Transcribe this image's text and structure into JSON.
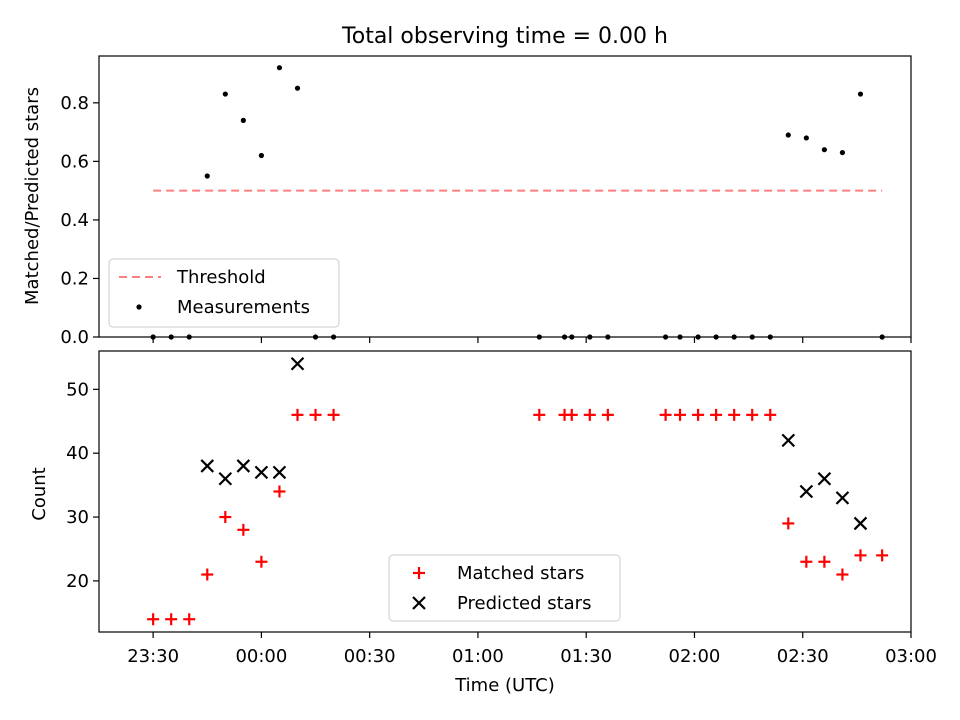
{
  "figure": {
    "title": "Total observing time = 0.00 h"
  },
  "chart_data": [
    {
      "type": "scatter",
      "title": "Total observing time = 0.00 h",
      "xlabel": "",
      "ylabel": "Matched/Predicted stars",
      "xlim": [
        "23:15",
        "03:00"
      ],
      "ylim": [
        0,
        0.96
      ],
      "yticks": [
        0.0,
        0.2,
        0.4,
        0.6,
        0.8
      ],
      "ytick_labels": [
        "0.0",
        "0.2",
        "0.4",
        "0.6",
        "0.8"
      ],
      "grid": false,
      "legend_position": "lower-left",
      "threshold": {
        "name": "Threshold",
        "value": 0.5,
        "x_start": "23:30",
        "x_end": "02:52",
        "color": "#ff7f7f",
        "style": "dashed"
      },
      "series": [
        {
          "name": "Measurements",
          "color": "#000000",
          "marker": "dot",
          "x": [
            "23:30",
            "23:35",
            "23:40",
            "23:45",
            "23:50",
            "23:55",
            "00:00",
            "00:05",
            "00:10",
            "00:15",
            "00:20",
            "01:17",
            "01:24",
            "01:26",
            "01:31",
            "01:36",
            "01:52",
            "01:56",
            "02:01",
            "02:06",
            "02:11",
            "02:16",
            "02:21",
            "02:26",
            "02:31",
            "02:36",
            "02:41",
            "02:46",
            "02:52"
          ],
          "values": [
            0.0,
            0.0,
            0.0,
            0.55,
            0.83,
            0.74,
            0.62,
            0.92,
            0.85,
            0.0,
            0.0,
            0.0,
            0.0,
            0.0,
            0.0,
            0.0,
            0.0,
            0.0,
            0.0,
            0.0,
            0.0,
            0.0,
            0.0,
            0.69,
            0.68,
            0.64,
            0.63,
            0.83,
            0.0
          ]
        }
      ]
    },
    {
      "type": "scatter",
      "title": "",
      "xlabel": "Time (UTC)",
      "ylabel": "Count",
      "xlim": [
        "23:15",
        "03:00"
      ],
      "ylim": [
        12,
        56
      ],
      "yticks": [
        20,
        30,
        40,
        50
      ],
      "ytick_labels": [
        "20",
        "30",
        "40",
        "50"
      ],
      "xticks": [
        "23:30",
        "00:00",
        "00:30",
        "01:00",
        "01:30",
        "02:00",
        "02:30",
        "03:00"
      ],
      "xtick_labels": [
        "23:30",
        "00:00",
        "00:30",
        "01:00",
        "01:30",
        "02:00",
        "02:30",
        "03:00"
      ],
      "grid": false,
      "legend_position": "lower-center",
      "series": [
        {
          "name": "Matched stars",
          "color": "#ff0000",
          "marker": "plus",
          "x": [
            "23:30",
            "23:35",
            "23:40",
            "23:45",
            "23:50",
            "23:55",
            "00:00",
            "00:05",
            "00:10",
            "00:15",
            "00:20",
            "01:17",
            "01:24",
            "01:26",
            "01:31",
            "01:36",
            "01:52",
            "01:56",
            "02:01",
            "02:06",
            "02:11",
            "02:16",
            "02:21",
            "02:26",
            "02:31",
            "02:36",
            "02:41",
            "02:46",
            "02:52"
          ],
          "values": [
            14,
            14,
            14,
            21,
            30,
            28,
            23,
            34,
            46,
            46,
            46,
            46,
            46,
            46,
            46,
            46,
            46,
            46,
            46,
            46,
            46,
            46,
            46,
            29,
            23,
            23,
            21,
            24,
            24
          ]
        },
        {
          "name": "Predicted stars",
          "color": "#000000",
          "marker": "x",
          "x": [
            "23:45",
            "23:50",
            "23:55",
            "00:00",
            "00:05",
            "00:10",
            "02:26",
            "02:31",
            "02:36",
            "02:41",
            "02:46"
          ],
          "values": [
            38,
            36,
            38,
            37,
            37,
            54,
            42,
            34,
            36,
            33,
            29
          ]
        }
      ]
    }
  ]
}
